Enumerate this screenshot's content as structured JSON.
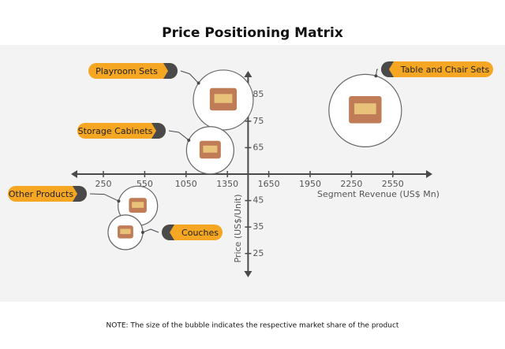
{
  "chart_data": {
    "type": "bubble",
    "title": "Price Positioning Matrix",
    "x_label": "Segment Revenue (US$ Mn)",
    "y_label": "Price (US$/Unit)",
    "note": "NOTE: The size of the bubble indicates the respective market share of the product",
    "xlim": [
      0,
      2850
    ],
    "xticks": [
      250,
      550,
      1050,
      1350,
      1650,
      1950,
      2250,
      2550
    ],
    "ylim": [
      16,
      94
    ],
    "yticks": [
      25,
      35,
      45,
      65,
      75,
      85
    ],
    "x_axis_at": 55,
    "y_axis_at": 1500,
    "color": "#f5a623",
    "series": [
      {
        "name": "Playroom Sets",
        "x": 1320,
        "y": 83,
        "size": 38
      },
      {
        "name": "Storage Cabinets",
        "x": 1225,
        "y": 64,
        "size": 30
      },
      {
        "name": "Table and Chair Sets",
        "x": 2350,
        "y": 79,
        "size": 46
      },
      {
        "name": "Other Products",
        "x": 500,
        "y": 43,
        "size": 25
      },
      {
        "name": "Couches",
        "x": 410,
        "y": 33,
        "size": 22
      }
    ]
  }
}
